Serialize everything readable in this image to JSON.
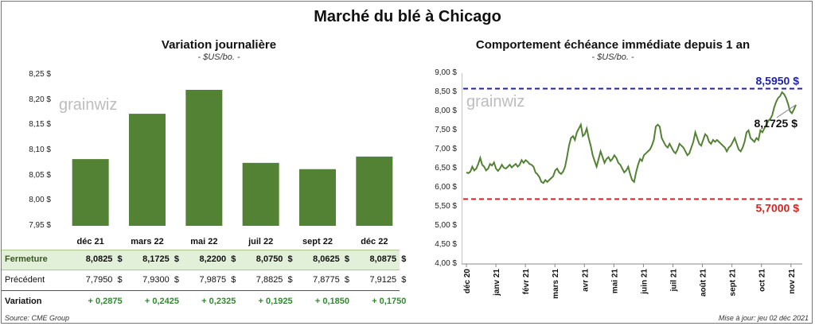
{
  "page_title": "Marché du blé à Chicago",
  "chart_data": [
    {
      "type": "bar",
      "title": "Variation journalière",
      "subtitle": "- $US/bo. -",
      "watermark": "grainwiz",
      "categories": [
        "déc 21",
        "mars 22",
        "mai 22",
        "juil 22",
        "sept 22",
        "déc 22"
      ],
      "values": [
        8.0825,
        8.1725,
        8.22,
        8.075,
        8.0625,
        8.0875
      ],
      "ylim": [
        7.95,
        8.25
      ],
      "yticks": [
        "8,25 $",
        "8,20 $",
        "8,15 $",
        "8,10 $",
        "8,05 $",
        "8,00 $",
        "7,95 $"
      ],
      "bar_color": "#548235",
      "table": {
        "rows": [
          {
            "label": "Fermeture",
            "values": [
              "8,0825  $",
              "8,1725  $",
              "8,2200  $",
              "8,0750  $",
              "8,0625  $",
              "8,0875  $"
            ]
          },
          {
            "label": "Précédent",
            "values": [
              "7,7950  $",
              "7,9300  $",
              "7,9875  $",
              "7,8825  $",
              "7,8775  $",
              "7,9125  $"
            ]
          },
          {
            "label": "Variation",
            "values": [
              "+ 0,2875",
              "+ 0,2425",
              "+ 0,2325",
              "+ 0,1925",
              "+ 0,1850",
              "+ 0,1750"
            ]
          }
        ]
      }
    },
    {
      "type": "line",
      "title": "Comportement  échéance immédiate depuis 1 an",
      "subtitle": "- $US/bo. -",
      "watermark": "grainwiz",
      "ylim": [
        4.0,
        9.0
      ],
      "yticks": [
        "9,00 $",
        "8,50 $",
        "8,00 $",
        "7,50 $",
        "7,00 $",
        "6,50 $",
        "6,00 $",
        "5,50 $",
        "5,00 $",
        "4,50 $",
        "4,00 $"
      ],
      "xticks": [
        "déc 20",
        "janv 21",
        "févr 21",
        "mars 21",
        "avr 21",
        "mai 21",
        "juin 21",
        "juil 21",
        "août 21",
        "sept 21",
        "oct 21",
        "nov 21"
      ],
      "line_color": "#548235",
      "values": [
        6.4,
        6.38,
        6.42,
        6.55,
        6.45,
        6.5,
        6.62,
        6.78,
        6.6,
        6.55,
        6.45,
        6.5,
        6.62,
        6.58,
        6.66,
        6.5,
        6.44,
        6.5,
        6.6,
        6.52,
        6.5,
        6.55,
        6.6,
        6.53,
        6.58,
        6.62,
        6.55,
        6.6,
        6.72,
        6.65,
        6.72,
        6.68,
        6.62,
        6.6,
        6.55,
        6.4,
        6.35,
        6.28,
        6.15,
        6.12,
        6.2,
        6.15,
        6.2,
        6.25,
        6.3,
        6.45,
        6.5,
        6.4,
        6.36,
        6.42,
        6.55,
        6.8,
        7.1,
        7.3,
        7.35,
        7.25,
        7.45,
        7.55,
        7.65,
        7.35,
        7.4,
        7.55,
        7.3,
        7.1,
        6.85,
        6.7,
        6.55,
        6.75,
        6.95,
        6.8,
        6.65,
        6.75,
        6.8,
        6.7,
        6.75,
        6.85,
        6.78,
        6.65,
        6.6,
        6.5,
        6.4,
        6.45,
        6.55,
        6.35,
        6.2,
        6.15,
        6.4,
        6.6,
        6.75,
        6.7,
        6.85,
        6.9,
        6.95,
        7.0,
        7.1,
        7.25,
        7.6,
        7.65,
        7.6,
        7.3,
        7.2,
        7.1,
        7.05,
        7.15,
        7.05,
        6.95,
        6.9,
        7.0,
        7.15,
        7.1,
        7.05,
        6.95,
        6.85,
        6.9,
        7.05,
        7.2,
        7.45,
        7.3,
        7.15,
        7.1,
        7.25,
        7.4,
        7.35,
        7.2,
        7.15,
        7.25,
        7.2,
        7.25,
        7.2,
        7.15,
        7.1,
        7.05,
        6.95,
        7.05,
        7.1,
        7.2,
        7.3,
        7.15,
        7.0,
        6.95,
        7.05,
        7.2,
        7.45,
        7.5,
        7.3,
        7.25,
        7.2,
        7.3,
        7.25,
        7.5,
        7.45,
        7.55,
        7.65,
        7.75,
        7.8,
        7.9,
        8.1,
        8.25,
        8.35,
        8.4,
        8.5,
        8.45,
        8.35,
        8.2,
        8.0,
        7.95,
        8.05,
        8.17
      ],
      "hlines": [
        {
          "value": 8.595,
          "label": "8,5950 $",
          "color": "#1f1fb4"
        },
        {
          "value": 5.7,
          "label": "5,7000 $",
          "color": "#e02020"
        }
      ],
      "last_label": "8,1725 $"
    }
  ],
  "footer": {
    "source": "Source: CME Group",
    "updated": "Mise à jour: jeu 02 déc 2021"
  }
}
